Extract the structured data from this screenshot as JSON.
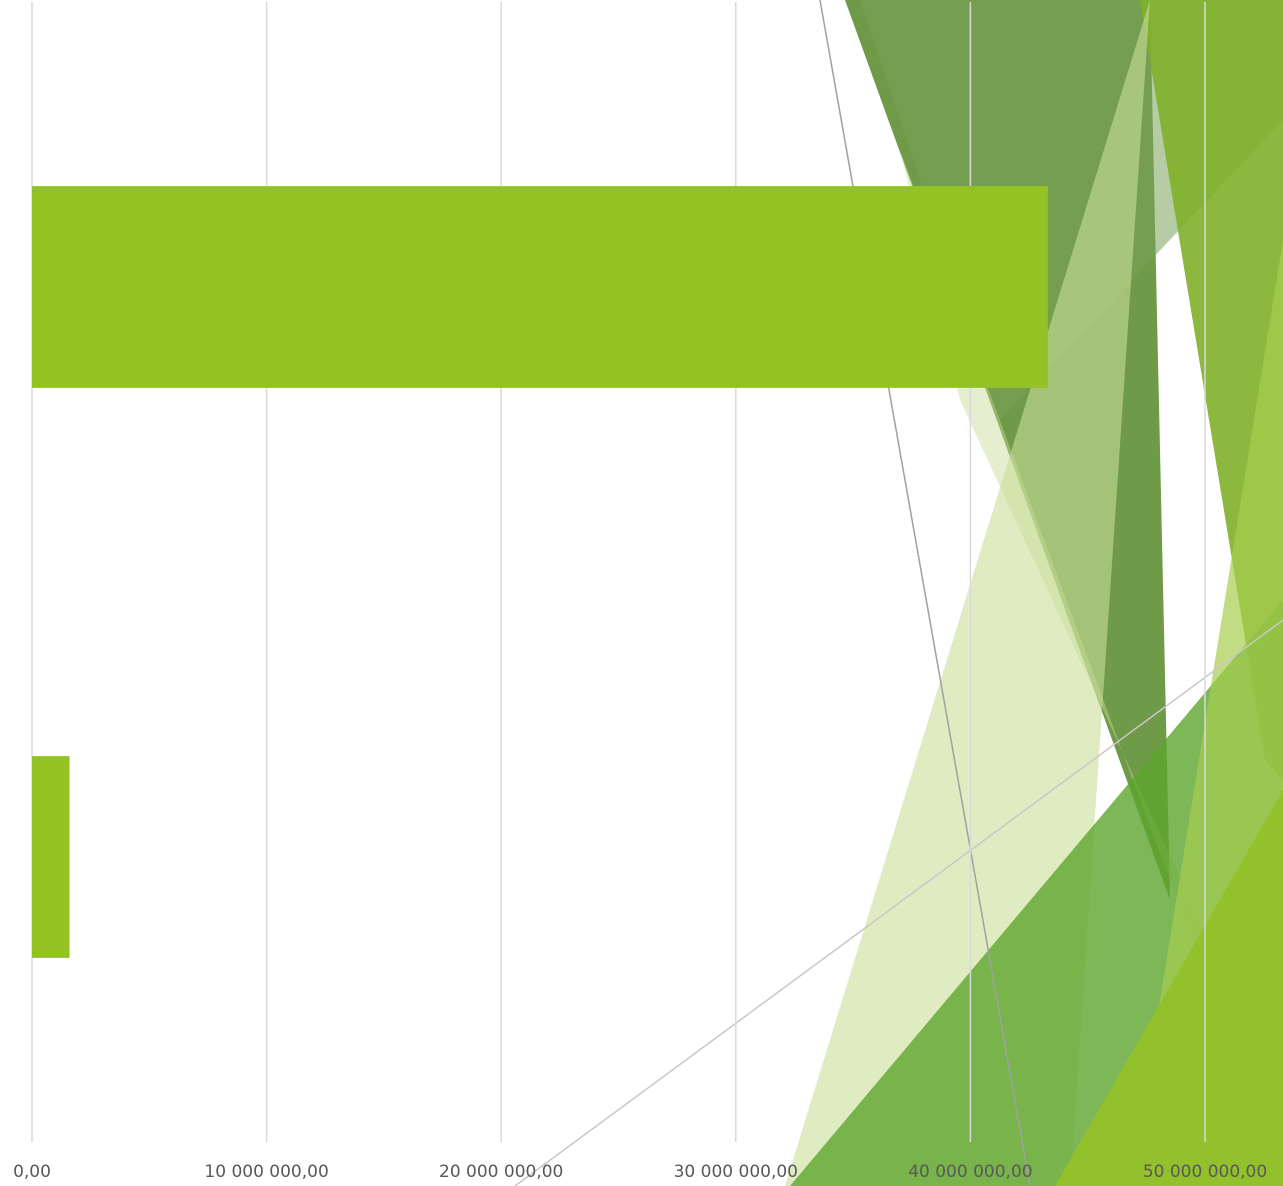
{
  "chart_data": {
    "type": "bar",
    "orientation": "horizontal",
    "categories": [
      null,
      null
    ],
    "values": [
      43300000,
      1600000
    ],
    "color": "#93c225",
    "xlim": [
      0,
      50000000
    ],
    "xticks": [
      {
        "value": 0,
        "label": "0,00"
      },
      {
        "value": 10000000,
        "label": "10 000 000,00"
      },
      {
        "value": 20000000,
        "label": "20 000 000,00"
      },
      {
        "value": 30000000,
        "label": "30 000 000,00"
      },
      {
        "value": 40000000,
        "label": "40 000 000,00"
      },
      {
        "value": 50000000,
        "label": "50 000 000,00"
      }
    ],
    "grid": true
  }
}
